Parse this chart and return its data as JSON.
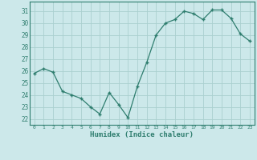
{
  "x": [
    0,
    1,
    2,
    3,
    4,
    5,
    6,
    7,
    8,
    9,
    10,
    11,
    12,
    13,
    14,
    15,
    16,
    17,
    18,
    19,
    20,
    21,
    22,
    23
  ],
  "y": [
    25.8,
    26.2,
    25.9,
    24.3,
    24.0,
    23.7,
    23.0,
    22.4,
    24.2,
    23.2,
    22.1,
    24.7,
    26.7,
    29.0,
    30.0,
    30.3,
    31.0,
    30.8,
    30.3,
    31.1,
    31.1,
    30.4,
    29.1,
    28.5
  ],
  "line_color": "#2e7d6e",
  "marker": "+",
  "marker_size": 3,
  "marker_lw": 1.0,
  "bg_color": "#cce8ea",
  "grid_color": "#aacfcf",
  "xlabel": "Humidex (Indice chaleur)",
  "ylabel_ticks": [
    22,
    23,
    24,
    25,
    26,
    27,
    28,
    29,
    30,
    31
  ],
  "xlim": [
    -0.5,
    23.5
  ],
  "ylim": [
    21.5,
    31.8
  ],
  "tick_color": "#2e7d6e",
  "label_color": "#2e7d6e"
}
